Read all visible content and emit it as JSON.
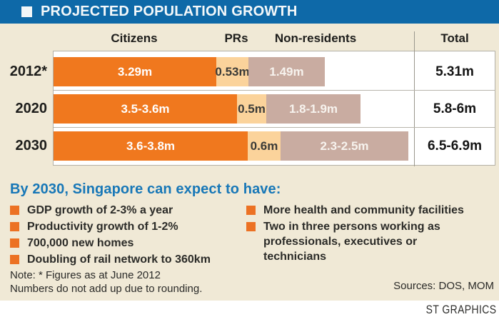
{
  "title": "PROJECTED POPULATION GROWTH",
  "colors": {
    "title_bar_blue": "#0E69A8",
    "panel_beige": "#F0E9D6",
    "citizens_orange": "#F0781E",
    "prs_peach": "#FBD39B",
    "non_residents_tan": "#C9ACA1",
    "heading_blue": "#1777B7",
    "bullet_orange": "#EC7123"
  },
  "chart_data": {
    "type": "bar",
    "orientation": "horizontal",
    "stacked": true,
    "unit": "millions of people",
    "column_headers": [
      "Citizens",
      "PRs",
      "Non-residents"
    ],
    "total_header": "Total",
    "rows": [
      {
        "year": "2012*",
        "citizens": "3.29m",
        "prs": "0.53m",
        "non_residents": "1.49m",
        "total": "5.31m",
        "values": {
          "citizens": 3.29,
          "prs": 0.53,
          "non_residents": 1.49,
          "total": 5.31
        }
      },
      {
        "year": "2020",
        "citizens": "3.5-3.6m",
        "prs": "0.5m",
        "non_residents": "1.8-1.9m",
        "total": "5.8-6m",
        "values": {
          "citizens": [
            3.5,
            3.6
          ],
          "prs": 0.5,
          "non_residents": [
            1.8,
            1.9
          ],
          "total": [
            5.8,
            6.0
          ]
        }
      },
      {
        "year": "2030",
        "citizens": "3.6-3.8m",
        "prs": "0.6m",
        "non_residents": "2.3-2.5m",
        "total": "6.5-6.9m",
        "values": {
          "citizens": [
            3.6,
            3.8
          ],
          "prs": 0.6,
          "non_residents": [
            2.3,
            2.5
          ],
          "total": [
            6.5,
            6.9
          ]
        }
      }
    ]
  },
  "expectations": {
    "heading": "By 2030, Singapore can expect to have:",
    "left": [
      "GDP growth of 2-3% a year",
      "Productivity growth of 1-2%",
      "700,000 new homes",
      "Doubling of rail network to 360km"
    ],
    "right": [
      "More health and community facilities",
      "Two in three persons working as\nprofessionals, executives or\ntechnicians"
    ]
  },
  "note": {
    "line1": "Note: * Figures as at June 2012",
    "line2": "Numbers do not add up due to rounding."
  },
  "sources": "Sources: DOS, MOM",
  "credit": "ST GRAPHICS"
}
